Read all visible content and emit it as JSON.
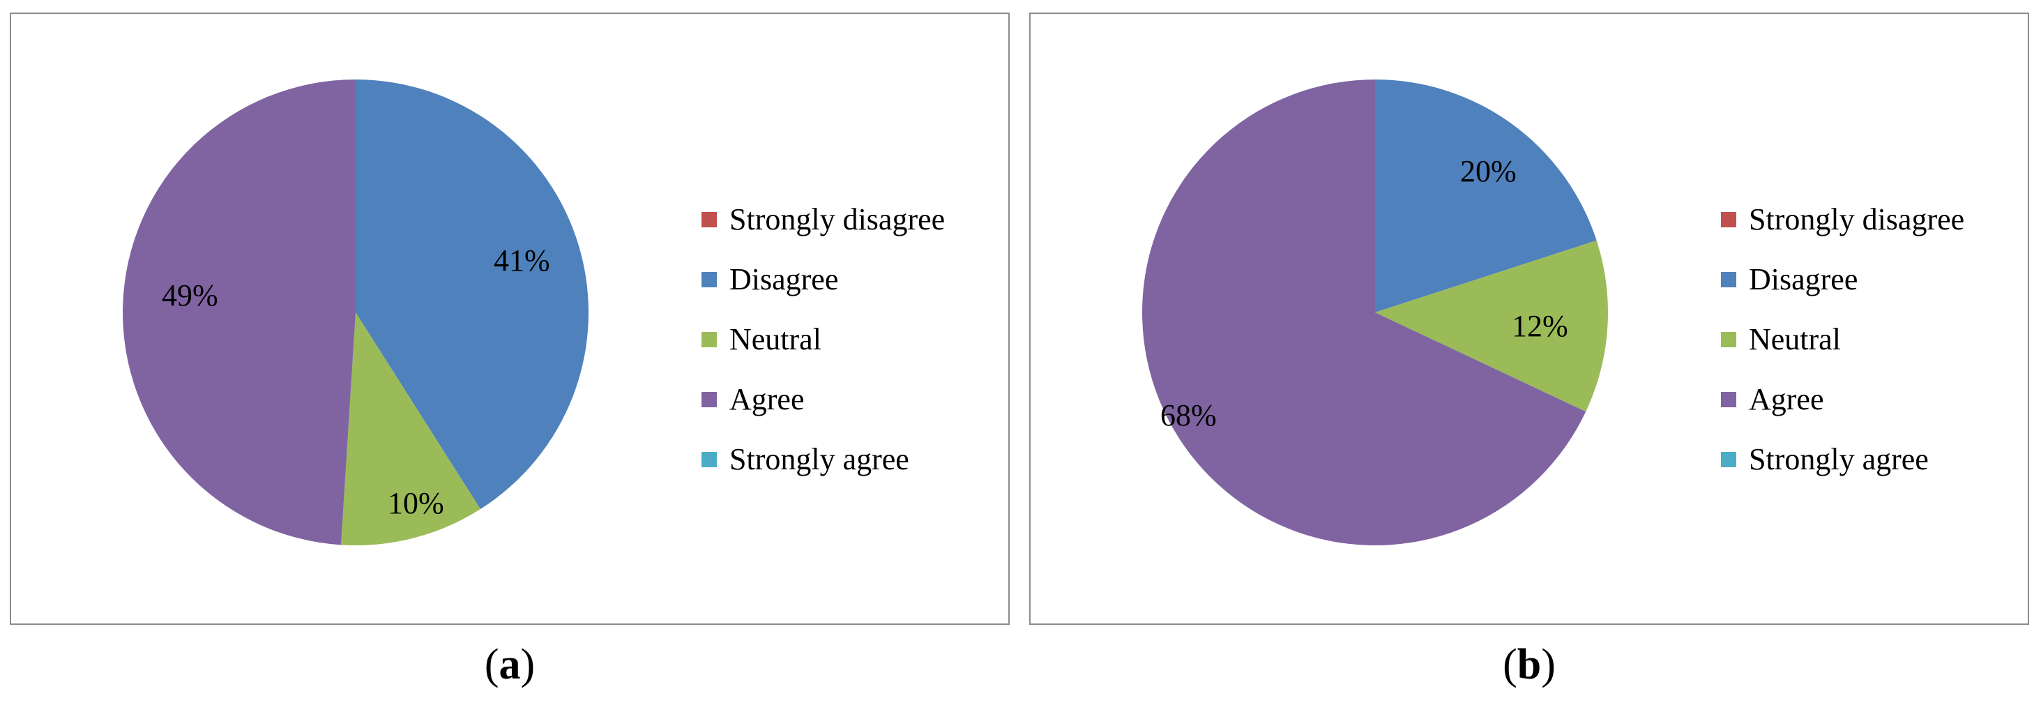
{
  "chart_data": [
    {
      "type": "pie",
      "panel_label": "a",
      "categories": [
        "Strongly disagree",
        "Disagree",
        "Neutral",
        "Agree",
        "Strongly agree"
      ],
      "values": [
        0,
        41,
        10,
        49,
        0
      ],
      "data_labels": [
        "",
        "41%",
        "10%",
        "49%",
        ""
      ],
      "colors": [
        "#c0504d",
        "#4f81bd",
        "#9bbb59",
        "#8064a2",
        "#4bacc6"
      ],
      "legend_position": "right",
      "start_angle": "top",
      "direction": "clockwise"
    },
    {
      "type": "pie",
      "panel_label": "b",
      "categories": [
        "Strongly disagree",
        "Disagree",
        "Neutral",
        "Agree",
        "Strongly agree"
      ],
      "values": [
        0,
        20,
        12,
        68,
        0
      ],
      "data_labels": [
        "",
        "20%",
        "12%",
        "68%",
        ""
      ],
      "colors": [
        "#c0504d",
        "#4f81bd",
        "#9bbb59",
        "#8064a2",
        "#4bacc6"
      ],
      "legend_position": "right",
      "start_angle": "top",
      "direction": "clockwise"
    }
  ],
  "captions": {
    "a": {
      "open": "(",
      "letter": "a",
      "close": ")"
    },
    "b": {
      "open": "(",
      "letter": "b",
      "close": ")"
    }
  }
}
